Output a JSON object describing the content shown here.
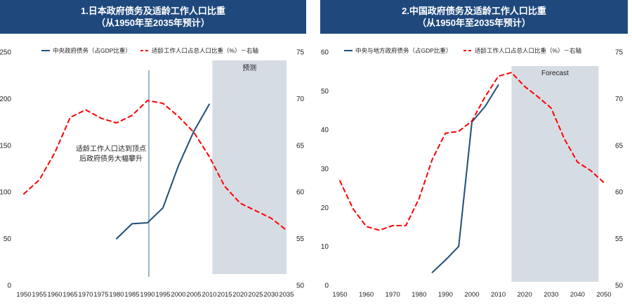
{
  "charts": [
    {
      "title_line1": "1.日本政府债务及适龄工作人口比重",
      "title_line2": "（从1950年至2035年预计）",
      "forecast_label": "预测",
      "annotation_line1": "适龄工作人口达到顶点",
      "annotation_line2": "后政府债务大幅攀升",
      "colors": {
        "debt": "#1f4e79",
        "working_age": "#ff0000",
        "forecast": "#d6dce4",
        "marker": "#5b87a8"
      }
    },
    {
      "title_line1": "2.中国政府债务及适龄工作人口比重",
      "title_line2": "（从1950年至2035年预计）",
      "forecast_label": "Forecast",
      "colors": {
        "debt": "#1f4e79",
        "working_age": "#ff0000",
        "forecast": "#d6dce4"
      }
    }
  ],
  "chart_data": [
    {
      "type": "line",
      "title": "1.日本政府债务及适龄工作人口比重（从1950年至2035年预计）",
      "x_categories": [
        "1950",
        "1955",
        "1960",
        "1965",
        "1970",
        "1975",
        "1980",
        "1985",
        "1990",
        "1995",
        "2000",
        "2005",
        "2010",
        "2015",
        "2020",
        "2025",
        "2030",
        "2035"
      ],
      "y_left": {
        "ticks": [
          "0",
          "50",
          "100",
          "150",
          "200",
          "250"
        ],
        "ylim": [
          0,
          250
        ]
      },
      "y_right": {
        "ticks": [
          "50",
          "55",
          "60",
          "65",
          "70",
          "75"
        ],
        "ylim": [
          50,
          75
        ]
      },
      "forecast_region": [
        "2011",
        "2035"
      ],
      "annotation_x": "1990",
      "legend_position": "top",
      "series": [
        {
          "name": "中央政府债务（占GDP比重）",
          "axis": "left",
          "style": "solid",
          "points": [
            [
              1980,
              50
            ],
            [
              1985,
              66
            ],
            [
              1990,
              67
            ],
            [
              1995,
              83
            ],
            [
              2000,
              128
            ],
            [
              2005,
              165
            ],
            [
              2010,
              194
            ]
          ]
        },
        {
          "name": "适龄工作人口占总人口比重（%）－右轴",
          "axis": "right",
          "style": "dashed",
          "points": [
            [
              1950,
              59.8
            ],
            [
              1955,
              61.3
            ],
            [
              1960,
              64.2
            ],
            [
              1965,
              68
            ],
            [
              1970,
              68.8
            ],
            [
              1975,
              67.9
            ],
            [
              1980,
              67.4
            ],
            [
              1985,
              68.2
            ],
            [
              1990,
              69.8
            ],
            [
              1995,
              69.5
            ],
            [
              2000,
              68.1
            ],
            [
              2005,
              66.4
            ],
            [
              2010,
              63.8
            ],
            [
              2015,
              60.6
            ],
            [
              2020,
              58.8
            ],
            [
              2025,
              58
            ],
            [
              2030,
              57.2
            ],
            [
              2035,
              55.9
            ]
          ]
        }
      ]
    },
    {
      "type": "line",
      "title": "2.中国政府债务及适龄工作人口比重（从1950年至2035年预计）",
      "x_categories": [
        "1950",
        "1960",
        "1970",
        "1980",
        "1990",
        "2000",
        "2010",
        "2020",
        "2030",
        "2040",
        "2050"
      ],
      "y_left": {
        "ticks": [
          "0",
          "10",
          "20",
          "30",
          "40",
          "50",
          "60"
        ],
        "ylim": [
          0,
          60
        ]
      },
      "y_right": {
        "ticks": [
          "50",
          "55",
          "60",
          "65",
          "70",
          "75"
        ],
        "ylim": [
          50,
          75
        ]
      },
      "forecast_region": [
        "2015",
        "2048"
      ],
      "legend_position": "top",
      "series": [
        {
          "name": "中央与地方政府债务（占GDP比重）",
          "axis": "left",
          "style": "solid",
          "points": [
            [
              1985,
              3.3
            ],
            [
              1990,
              6.5
            ],
            [
              1995,
              10
            ],
            [
              2000,
              42
            ],
            [
              2005,
              46
            ],
            [
              2010,
              51.5
            ]
          ]
        },
        {
          "name": "适龄工作人口占总人口比重（%）－右轴",
          "axis": "right",
          "style": "dashed",
          "points": [
            [
              1950,
              61.2
            ],
            [
              1955,
              58.2
            ],
            [
              1960,
              56.3
            ],
            [
              1965,
              55.9
            ],
            [
              1970,
              56.4
            ],
            [
              1975,
              56.4
            ],
            [
              1980,
              59.3
            ],
            [
              1985,
              63.5
            ],
            [
              1990,
              66.3
            ],
            [
              1995,
              66.5
            ],
            [
              2000,
              67.6
            ],
            [
              2005,
              70.2
            ],
            [
              2010,
              72.4
            ],
            [
              2015,
              72.8
            ],
            [
              2020,
              71.3
            ],
            [
              2025,
              70.2
            ],
            [
              2030,
              69
            ],
            [
              2035,
              65.7
            ],
            [
              2040,
              63.2
            ],
            [
              2045,
              62.3
            ],
            [
              2050,
              61
            ]
          ]
        }
      ]
    }
  ]
}
